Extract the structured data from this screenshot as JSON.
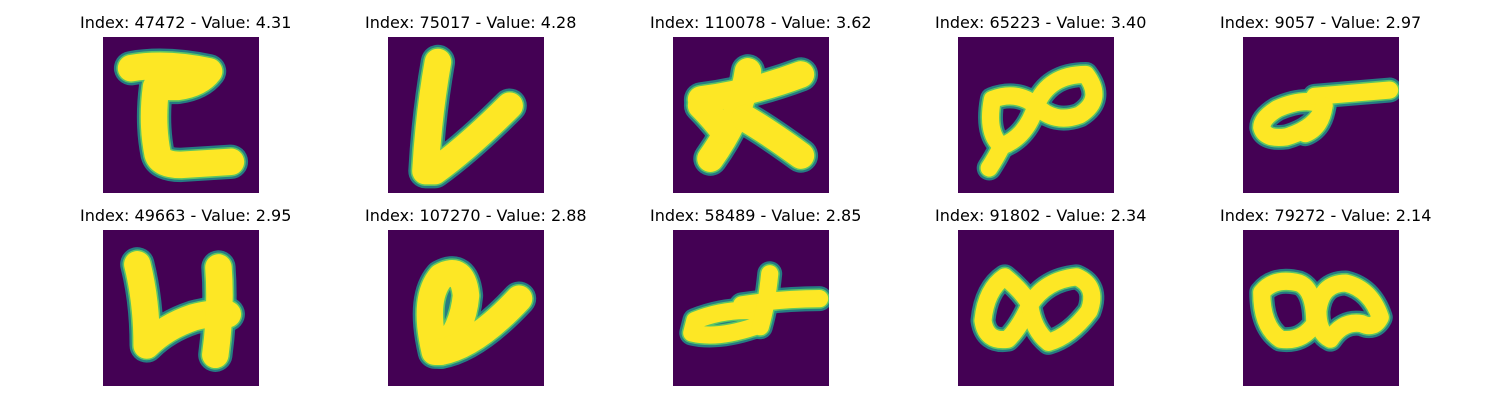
{
  "figure": {
    "colors": {
      "background": "#440154",
      "foreground": "#fde725",
      "edge_outer": "#21918c",
      "edge_inner": "#5ec962"
    },
    "panels": [
      {
        "title": "Index: 47472 - Value: 4.31",
        "glyph": "hook-glyph"
      },
      {
        "title": "Index: 75017 - Value: 4.28",
        "glyph": "v-glyph"
      },
      {
        "title": "Index: 110078 - Value: 3.62",
        "glyph": "cross-glyph"
      },
      {
        "title": "Index: 65223 - Value: 3.40",
        "glyph": "double-loop-glyph"
      },
      {
        "title": "Index: 9057 - Value: 2.97",
        "glyph": "loop-tail-glyph"
      },
      {
        "title": "Index: 49663 - Value: 2.95",
        "glyph": "four-glyph"
      },
      {
        "title": "Index: 107270 - Value: 2.88",
        "glyph": "loop-stroke-glyph"
      },
      {
        "title": "Index: 58489 - Value: 2.85",
        "glyph": "fish-glyph"
      },
      {
        "title": "Index: 91802 - Value: 2.34",
        "glyph": "infinity-glyph"
      },
      {
        "title": "Index: 79272 - Value: 2.14",
        "glyph": "double-o-glyph"
      }
    ]
  }
}
